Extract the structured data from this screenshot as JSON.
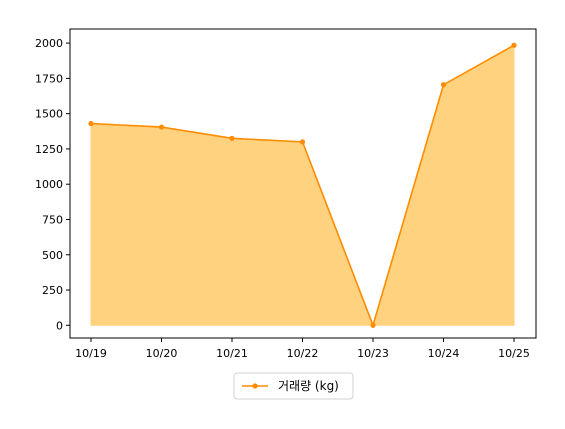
{
  "chart_data": {
    "type": "area",
    "categories": [
      "10/19",
      "10/20",
      "10/21",
      "10/22",
      "10/23",
      "10/24",
      "10/25"
    ],
    "series": [
      {
        "name": "거래량 (kg)",
        "values": [
          1430,
          1405,
          1325,
          1300,
          0,
          1705,
          1985
        ],
        "line_color": "#ff8c00",
        "fill_color": "#ffd27f"
      }
    ],
    "y_ticks": [
      0,
      250,
      500,
      750,
      1000,
      1250,
      1500,
      1750,
      2000
    ],
    "ylim": [
      -90,
      2100
    ],
    "grid": false,
    "legend_position": "bottom-center"
  }
}
